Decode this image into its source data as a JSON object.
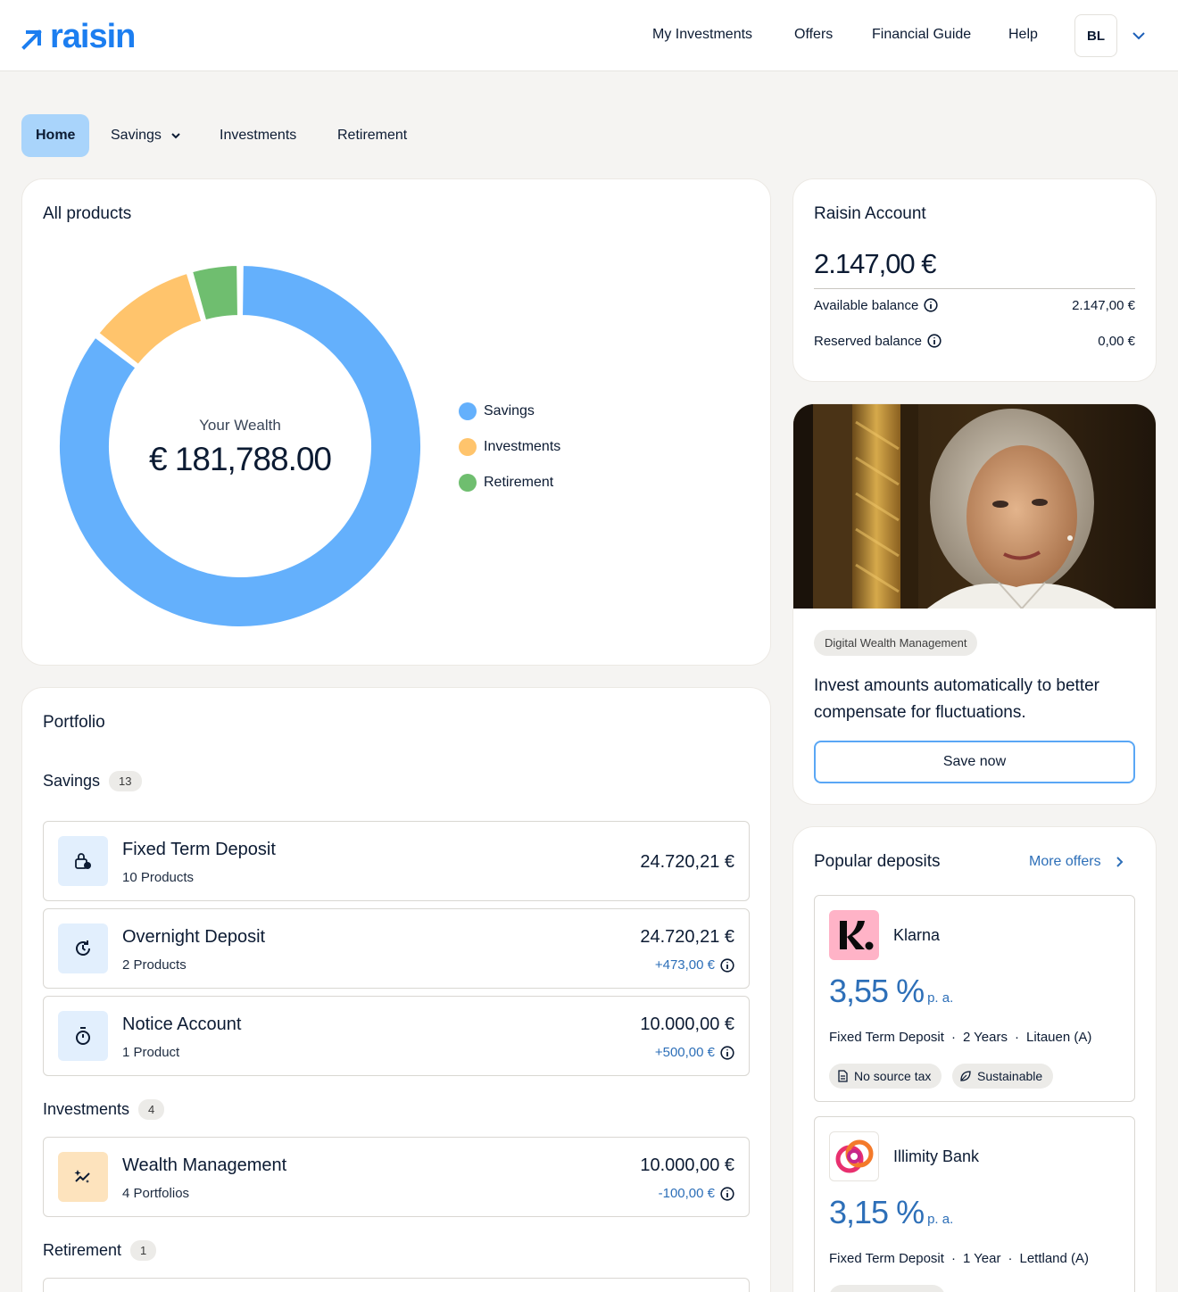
{
  "header": {
    "brand": "raisin",
    "nav": [
      "My Investments",
      "Offers",
      "Financial Guide",
      "Help"
    ],
    "avatar_initials": "BL"
  },
  "tabs": [
    "Home",
    "Savings",
    "Investments",
    "Retirement"
  ],
  "all_products": {
    "title": "All products",
    "center_label": "Your Wealth",
    "center_value": "€ 181,788.00",
    "legend": [
      "Savings",
      "Investments",
      "Retirement"
    ],
    "colors": [
      "#64b0fc",
      "#ffc46c",
      "#6fbe6f"
    ]
  },
  "chart_data": {
    "type": "pie",
    "categories": [
      "Savings",
      "Investments",
      "Retirement"
    ],
    "values": [
      85.5,
      10,
      4.5
    ]
  },
  "raisin_account": {
    "title": "Raisin Account",
    "balance": "2.147,00 €",
    "rows": [
      {
        "label": "Available balance",
        "value": "2.147,00 €"
      },
      {
        "label": "Reserved balance",
        "value": "0,00 €"
      }
    ]
  },
  "promo": {
    "chip": "Digital Wealth Management",
    "text": "Invest amounts automatically to better compensate for fluctuations.",
    "button": "Save now"
  },
  "portfolio": {
    "title": "Portfolio",
    "sections": [
      {
        "label": "Savings",
        "count": "13"
      },
      {
        "label": "Investments",
        "count": "4"
      },
      {
        "label": "Retirement",
        "count": "1"
      }
    ],
    "products": [
      {
        "name": "Fixed Term Deposit",
        "sub": "10 Products",
        "amount": "24.720,21 €",
        "delta": ""
      },
      {
        "name": "Overnight Deposit",
        "sub": "2 Products",
        "amount": "24.720,21 €",
        "delta": "+473,00 €"
      },
      {
        "name": "Notice Account",
        "sub": "1 Product",
        "amount": "10.000,00 €",
        "delta": "+500,00 €"
      },
      {
        "name": "Wealth Management",
        "sub": "4 Portfolios",
        "amount": "10.000,00 €",
        "delta": "-100,00 €"
      }
    ]
  },
  "popular": {
    "title": "Popular deposits",
    "more": "More offers",
    "deposits": [
      {
        "bank": "Klarna",
        "rate": "3,55 %",
        "pa": "p. a.",
        "type": "Fixed Term Deposit",
        "term": "2 Years",
        "country": "Litauen (A)",
        "tags": [
          "No source tax",
          "Sustainable"
        ]
      },
      {
        "bank": "Illimity Bank",
        "rate": "3,15 %",
        "pa": "p. a.",
        "type": "Fixed Term Deposit",
        "term": "1 Year",
        "country": "Lettland (A)",
        "tags": []
      }
    ]
  }
}
